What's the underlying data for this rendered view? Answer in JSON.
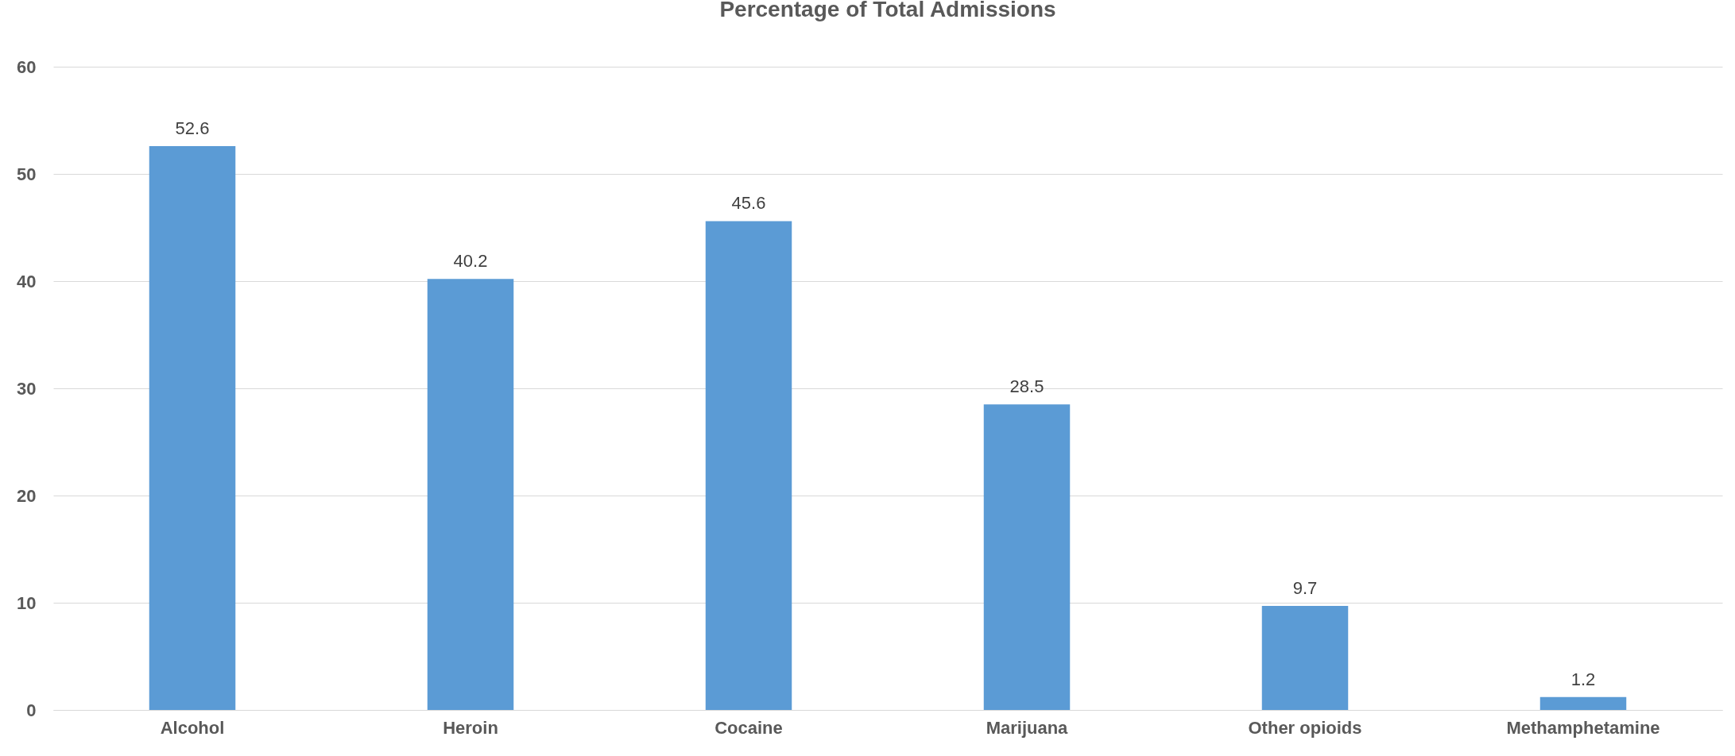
{
  "chart_data": {
    "type": "bar",
    "title": "Percentage of Total Admissions",
    "categories": [
      "Alcohol",
      "Heroin",
      "Cocaine",
      "Marijuana",
      "Other opioids",
      "Methamphetamine"
    ],
    "values": [
      52.6,
      40.2,
      45.6,
      28.5,
      9.7,
      1.2
    ],
    "color": "#5b9bd5",
    "ylim": [
      0,
      60
    ],
    "yticks": [
      0,
      10,
      20,
      30,
      40,
      50,
      60
    ],
    "grid": "y",
    "data_labels": true
  }
}
